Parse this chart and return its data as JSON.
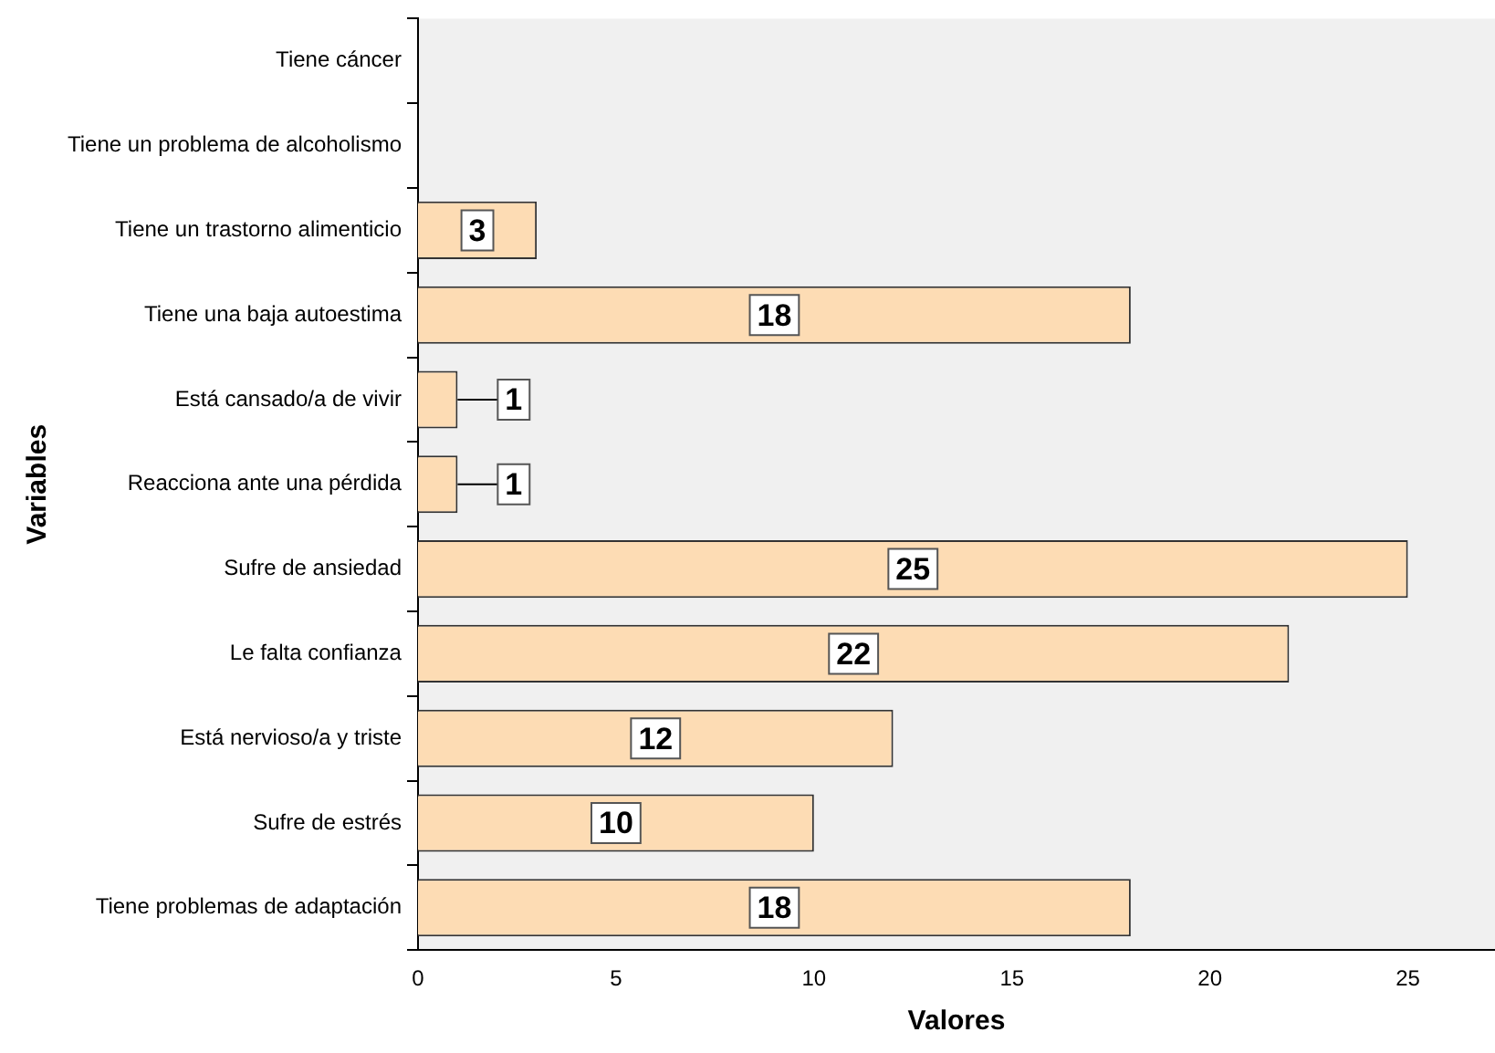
{
  "chart_data": {
    "type": "bar",
    "orientation": "horizontal",
    "xlabel": "Valores",
    "ylabel": "Variables",
    "categories": [
      "Tiene cáncer",
      "Tiene un problema de alcoholismo",
      "Tiene un trastorno alimenticio",
      "Tiene una baja autoestima",
      "Está cansado/a de vivir",
      "Reacciona ante una pérdida",
      "Sufre de ansiedad",
      "Le falta confianza",
      "Está nervioso/a y triste",
      "Sufre de estrés",
      "Tiene problemas de adaptación"
    ],
    "values": [
      0,
      0,
      3,
      18,
      1,
      1,
      25,
      22,
      12,
      10,
      18
    ],
    "value_labels": [
      null,
      null,
      "3",
      "18",
      "1",
      "1",
      "25",
      "22",
      "12",
      "10",
      "18"
    ],
    "color": "#fddcb4",
    "xlim": [
      0,
      27.2
    ],
    "xticks": [
      0,
      5,
      10,
      15,
      20,
      25
    ],
    "grid": false
  }
}
